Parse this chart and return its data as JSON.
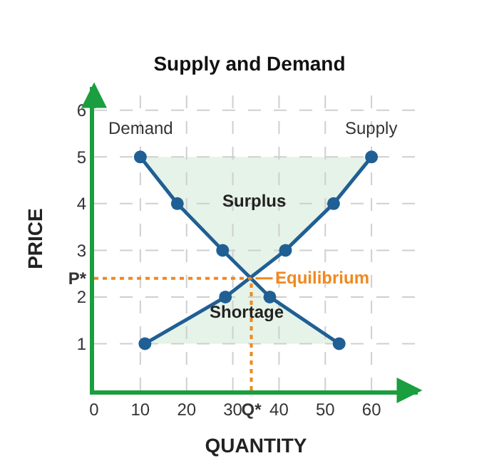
{
  "chart_data": {
    "type": "line",
    "title": "Supply and Demand",
    "xlabel": "QUANTITY",
    "ylabel": "PRICE",
    "series": [
      {
        "name": "Demand",
        "color": "#1f5f94",
        "x": [
          10,
          18,
          27.8,
          38,
          53
        ],
        "values": [
          5,
          4,
          3,
          2,
          1
        ]
      },
      {
        "name": "Supply",
        "color": "#1f5f94",
        "x": [
          11,
          28.4,
          41.4,
          51.8,
          60
        ],
        "values": [
          1,
          2,
          3,
          4,
          5
        ]
      }
    ],
    "xlim": [
      0,
      70
    ],
    "ylim": [
      0,
      6.5
    ],
    "xticks": [
      0,
      10,
      20,
      30,
      {
        "value": 34,
        "label": "Q*"
      },
      40,
      50,
      60
    ],
    "yticks": [
      1,
      2,
      {
        "value": 2.4,
        "label": "P*"
      },
      3,
      4,
      5,
      6
    ],
    "ref_lines": [
      {
        "axis": "x",
        "value": 34,
        "label": null,
        "color": "#f0891e",
        "line_style": "dotted"
      },
      {
        "axis": "y",
        "value": 2.4,
        "label": null,
        "color": "#f0891e",
        "line_style": "dotted"
      }
    ],
    "annotations": [
      {
        "text": "Equilibrium",
        "x": 34,
        "y": 2.4
      },
      "Surplus",
      "Shortage"
    ],
    "grid": true,
    "marker": "circle",
    "line_style": "solid",
    "legend": false
  }
}
